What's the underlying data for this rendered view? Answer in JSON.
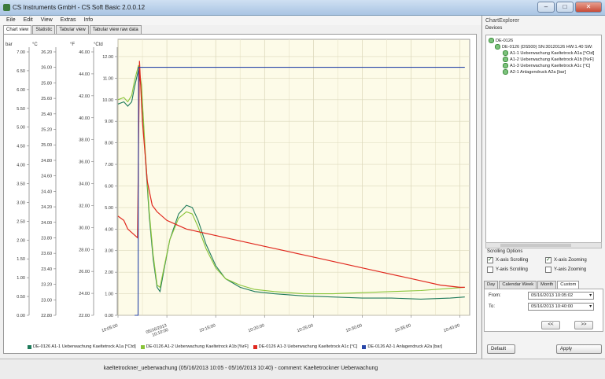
{
  "window": {
    "title": "CS Instruments GmbH - CS Soft Basic 2.0.0.12"
  },
  "menu": [
    "Eile",
    "Edit",
    "View",
    "Extras",
    "Info"
  ],
  "tabs": [
    "Chart view",
    "Statistic",
    "Tabular view",
    "Tabular view raw data"
  ],
  "chart_data": {
    "type": "line",
    "y_axes": [
      {
        "unit": "bar",
        "ticks": [
          "0.00",
          "0.50",
          "1.00",
          "1.50",
          "2.00",
          "2.50",
          "3.00",
          "3.50",
          "4.00",
          "4.50",
          "5.00",
          "5.50",
          "6.00",
          "6.50",
          "7.00"
        ]
      },
      {
        "unit": "°C",
        "ticks": [
          "22.80",
          "23.00",
          "23.20",
          "23.40",
          "23.60",
          "23.80",
          "24.00",
          "24.20",
          "24.40",
          "24.60",
          "24.80",
          "25.00",
          "25.20",
          "25.40",
          "25.60",
          "25.80",
          "26.00",
          "26.20"
        ]
      },
      {
        "unit": "°F",
        "ticks": [
          "22.00",
          "24.00",
          "26.00",
          "28.00",
          "30.00",
          "32.00",
          "34.00",
          "36.00",
          "38.00",
          "40.00",
          "42.00",
          "44.00",
          "46.00"
        ]
      },
      {
        "unit": "°Ctd",
        "ylim": [
          0,
          12.8
        ],
        "ticks": [
          "0.00",
          "1.00",
          "2.00",
          "3.00",
          "4.00",
          "5.00",
          "6.00",
          "7.00",
          "8.00",
          "9.00",
          "10.00",
          "11.00",
          "12.00"
        ]
      }
    ],
    "x_ticks": [
      "10:05:00",
      "05/16/2013 10:10:00",
      "10:15:00",
      "10:20:00",
      "10:25:00",
      "10:30:00",
      "10:35:00",
      "10:40:00"
    ],
    "xlim_minutes": [
      5,
      41
    ],
    "series": [
      {
        "name": "DE-0126 A1-1 Ueberwachung Kaeltetrock A1a [°Ctd]",
        "color": "#1e7a5a",
        "points": [
          [
            5,
            9.8
          ],
          [
            5.6,
            9.9
          ],
          [
            6,
            9.7
          ],
          [
            6.4,
            9.9
          ],
          [
            6.7,
            10.6
          ],
          [
            7.1,
            11.4
          ],
          [
            7.4,
            10.5
          ],
          [
            7.8,
            7.3
          ],
          [
            8.2,
            4.6
          ],
          [
            8.6,
            2.6
          ],
          [
            9,
            1.3
          ],
          [
            9.3,
            1.1
          ],
          [
            9.7,
            2.1
          ],
          [
            10.3,
            3.5
          ],
          [
            11.2,
            4.7
          ],
          [
            12,
            5.1
          ],
          [
            12.6,
            5.0
          ],
          [
            13.2,
            4.4
          ],
          [
            14,
            3.3
          ],
          [
            15,
            2.3
          ],
          [
            16,
            1.7
          ],
          [
            17.5,
            1.3
          ],
          [
            19,
            1.1
          ],
          [
            21,
            1.0
          ],
          [
            24,
            0.9
          ],
          [
            27,
            0.85
          ],
          [
            30,
            0.8
          ],
          [
            33,
            0.8
          ],
          [
            36,
            0.75
          ],
          [
            39,
            0.8
          ],
          [
            40.5,
            0.85
          ]
        ]
      },
      {
        "name": "DE-0126 A1-2 Ueberwachung Kaeltetrock A1b [%rF]",
        "color": "#8ac43a",
        "points": [
          [
            5,
            10.0
          ],
          [
            5.6,
            10.1
          ],
          [
            6,
            9.9
          ],
          [
            6.4,
            10.2
          ],
          [
            6.7,
            10.9
          ],
          [
            7.1,
            11.6
          ],
          [
            7.4,
            10.7
          ],
          [
            7.8,
            7.5
          ],
          [
            8.2,
            4.8
          ],
          [
            8.6,
            2.8
          ],
          [
            9,
            1.4
          ],
          [
            9.3,
            1.3
          ],
          [
            9.7,
            2.2
          ],
          [
            10.3,
            3.5
          ],
          [
            11.2,
            4.5
          ],
          [
            12,
            4.8
          ],
          [
            12.6,
            4.7
          ],
          [
            13.2,
            4.1
          ],
          [
            14,
            3.1
          ],
          [
            15,
            2.2
          ],
          [
            16,
            1.7
          ],
          [
            17.5,
            1.4
          ],
          [
            19,
            1.2
          ],
          [
            21,
            1.1
          ],
          [
            24,
            1.0
          ],
          [
            27,
            1.0
          ],
          [
            30,
            1.05
          ],
          [
            33,
            1.1
          ],
          [
            36,
            1.15
          ],
          [
            39,
            1.25
          ],
          [
            40.5,
            1.3
          ]
        ]
      },
      {
        "name": "DE-0126 A1-3 Ueberwachung Kaeltetrock A1c [°C]",
        "color": "#e0281e",
        "points": [
          [
            5,
            4.6
          ],
          [
            5.6,
            4.4
          ],
          [
            6,
            4.0
          ],
          [
            6.5,
            3.8
          ],
          [
            7,
            3.6
          ],
          [
            7.2,
            11.8
          ],
          [
            7.5,
            9.0
          ],
          [
            8,
            6.2
          ],
          [
            8.5,
            5.1
          ],
          [
            9,
            4.8
          ],
          [
            10,
            4.4
          ],
          [
            11,
            4.2
          ],
          [
            12,
            4.0
          ],
          [
            13,
            3.9
          ],
          [
            14,
            3.8
          ],
          [
            16,
            3.6
          ],
          [
            18,
            3.4
          ],
          [
            20,
            3.2
          ],
          [
            22,
            3.0
          ],
          [
            24,
            2.8
          ],
          [
            26,
            2.6
          ],
          [
            28,
            2.4
          ],
          [
            30,
            2.2
          ],
          [
            32,
            2.0
          ],
          [
            34,
            1.8
          ],
          [
            36,
            1.6
          ],
          [
            38,
            1.4
          ],
          [
            40,
            1.3
          ],
          [
            40.5,
            1.3
          ]
        ]
      },
      {
        "name": "DE-0126 A2-1 Anlagendruck A2a [bar]",
        "color": "#2846a8",
        "points": [
          [
            6.7,
            0.0
          ],
          [
            7.05,
            0.0
          ],
          [
            7.1,
            11.5
          ],
          [
            40.5,
            11.5
          ]
        ]
      }
    ]
  },
  "explorer": {
    "title": "ChartExplorer",
    "devices_label": "Devices",
    "root": "DE-0126",
    "device": "DE-0126 (DS500) SN:30120126 HW:1.40 SW:",
    "channels": [
      "A1-1 Ueberwachung Kaeltetrock A1a [°Ctd]",
      "A1-2 Ueberwachung Kaeltetrock A1b [%rF]",
      "A1-3 Ueberwachung Kaeltetrock A1c [°C]",
      "A2-1 Anlagendruck A2a [bar]"
    ]
  },
  "scrolling": {
    "title": "Scrolling Options",
    "x_scroll": "X-axis Scrolling",
    "x_zoom": "X-axis Zooming",
    "y_scroll": "Y-axis Scrolling",
    "y_zoom": "Y-axis Zooming"
  },
  "range": {
    "tabs": [
      "Day",
      "Calendar Week",
      "Month",
      "Custom"
    ],
    "from_label": "From:",
    "from_value": "05/16/2013 10:05:02",
    "to_label": "To:",
    "to_value": "05/16/2013 10:40:00",
    "prev": "<<",
    "next": ">>"
  },
  "buttons": {
    "default": "Default",
    "apply": "Apply"
  },
  "status": "kaeltetrockner_ueberwachung (05/16/2013 10:05 - 05/16/2013 10:40) - comment: Kaeltetrockner Ueberwachung"
}
